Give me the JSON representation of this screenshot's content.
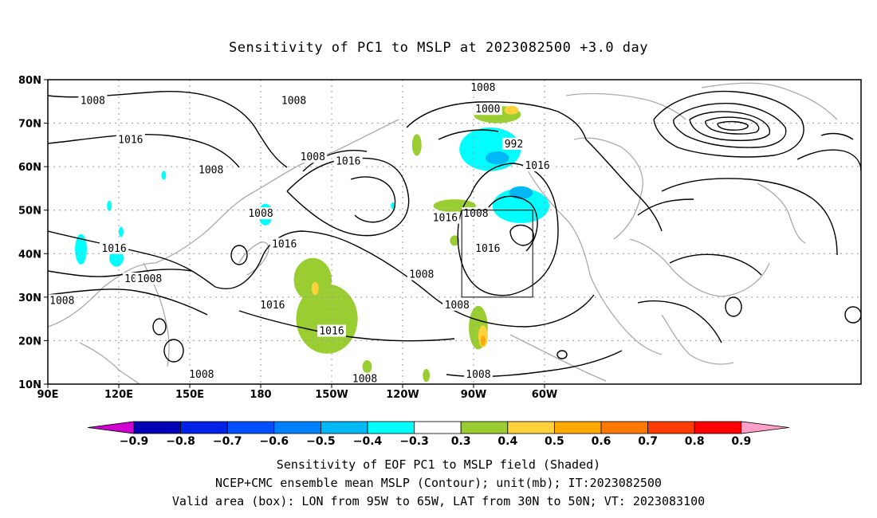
{
  "title": "Sensitivity of PC1 to MSLP at 2023082500 +3.0 day",
  "lat_labels": [
    "80N",
    "70N",
    "60N",
    "50N",
    "40N",
    "30N",
    "20N",
    "10N"
  ],
  "lon_labels": [
    "90E",
    "120E",
    "150E",
    "180",
    "150W",
    "120W",
    "90W",
    "60W"
  ],
  "contour_labels": [
    {
      "text": "1008",
      "lon": 109,
      "lat": 75
    },
    {
      "text": "1016",
      "lon": 125,
      "lat": 66
    },
    {
      "text": "1008",
      "lon": 159,
      "lat": 59
    },
    {
      "text": "1008",
      "lon": -166,
      "lat": 75
    },
    {
      "text": "1008",
      "lon": -158,
      "lat": 62
    },
    {
      "text": "1016",
      "lon": -143,
      "lat": 61
    },
    {
      "text": "1008",
      "lon": -86,
      "lat": 78
    },
    {
      "text": "1000",
      "lon": -84,
      "lat": 73
    },
    {
      "text": "992",
      "lon": -73,
      "lat": 65
    },
    {
      "text": "1008",
      "lon": -180,
      "lat": 49
    },
    {
      "text": "1016",
      "lon": -170,
      "lat": 42
    },
    {
      "text": "1016",
      "lon": 118,
      "lat": 41
    },
    {
      "text": "10",
      "lon": 125,
      "lat": 34
    },
    {
      "text": "1008",
      "lon": 133,
      "lat": 34
    },
    {
      "text": "1008",
      "lon": 96,
      "lat": 29
    },
    {
      "text": "1016",
      "lon": -175,
      "lat": 28
    },
    {
      "text": "1016",
      "lon": -150,
      "lat": 22
    },
    {
      "text": "1008",
      "lon": 155,
      "lat": 12
    },
    {
      "text": "1008",
      "lon": -136,
      "lat": 11
    },
    {
      "text": "1008",
      "lon": -112,
      "lat": 35
    },
    {
      "text": "1016",
      "lon": -102,
      "lat": 48
    },
    {
      "text": "1008",
      "lon": -89,
      "lat": 49
    },
    {
      "text": "1016",
      "lon": -84,
      "lat": 41
    },
    {
      "text": "1008",
      "lon": -97,
      "lat": 28
    },
    {
      "text": "1008",
      "lon": -88,
      "lat": 12
    },
    {
      "text": "1016",
      "lon": -63,
      "lat": 60
    }
  ],
  "valid_box": {
    "lon_min": -95,
    "lon_max": -65,
    "lat_min": 30,
    "lat_max": 50
  },
  "shaded_regions": [
    {
      "level": "0.3",
      "lon": -152,
      "lat": 25,
      "rx": 13,
      "ry": 8
    },
    {
      "level": "0.3",
      "lon": -158,
      "lat": 34,
      "rx": 8,
      "ry": 5
    },
    {
      "level": "0.3",
      "lon": -80,
      "lat": 72,
      "rx": 10,
      "ry": 2
    },
    {
      "level": "0.3",
      "lon": -98,
      "lat": 51,
      "rx": 9,
      "ry": 1.5
    },
    {
      "level": "0.3",
      "lon": -88,
      "lat": 23,
      "rx": 4,
      "ry": 5
    },
    {
      "level": "0.3",
      "lon": -114,
      "lat": 65,
      "rx": 2,
      "ry": 2.5
    },
    {
      "level": "0.3",
      "lon": -135,
      "lat": 14,
      "rx": 2,
      "ry": 1.5
    },
    {
      "level": "0.3",
      "lon": -110,
      "lat": 12,
      "rx": 1.5,
      "ry": 1.5
    },
    {
      "level": "0.3",
      "lon": -98,
      "lat": 43,
      "rx": 2,
      "ry": 1.2
    },
    {
      "level": "0.4",
      "lon": -86,
      "lat": 21,
      "rx": 2,
      "ry": 2.5
    },
    {
      "level": "0.4",
      "lon": -157,
      "lat": 32,
      "rx": 1.5,
      "ry": 1.5
    },
    {
      "level": "0.4",
      "lon": -74,
      "lat": 73,
      "rx": 3,
      "ry": 1
    },
    {
      "level": "0.5",
      "lon": -86,
      "lat": 20,
      "rx": 1,
      "ry": 1.2
    },
    {
      "level": "-0.3",
      "lon": -83,
      "lat": 64,
      "rx": 13,
      "ry": 5
    },
    {
      "level": "-0.3",
      "lon": -70,
      "lat": 51,
      "rx": 12,
      "ry": 4
    },
    {
      "level": "-0.3",
      "lon": -178,
      "lat": 49,
      "rx": 3,
      "ry": 2.5
    },
    {
      "level": "-0.3",
      "lon": 104,
      "lat": 41,
      "rx": 2.5,
      "ry": 3.5
    },
    {
      "level": "-0.3",
      "lon": 119,
      "lat": 39,
      "rx": 3,
      "ry": 2
    },
    {
      "level": "-0.3",
      "lon": 121,
      "lat": 45,
      "rx": 1,
      "ry": 1.2
    },
    {
      "level": "-0.3",
      "lon": 116,
      "lat": 51,
      "rx": 1,
      "ry": 1.2
    },
    {
      "level": "-0.3",
      "lon": 139,
      "lat": 58,
      "rx": 1,
      "ry": 1
    },
    {
      "level": "-0.3",
      "lon": -124,
      "lat": 51,
      "rx": 1,
      "ry": 0.8
    },
    {
      "level": "-0.4",
      "lon": -70,
      "lat": 54,
      "rx": 5,
      "ry": 1.5
    },
    {
      "level": "-0.4",
      "lon": -80,
      "lat": 62,
      "rx": 5,
      "ry": 1.5
    }
  ],
  "colorbar": {
    "ticks": [
      "−0.9",
      "−0.8",
      "−0.7",
      "−0.6",
      "−0.5",
      "−0.4",
      "−0.3",
      "0.3",
      "0.4",
      "0.5",
      "0.6",
      "0.7",
      "0.8",
      "0.9"
    ],
    "colors": [
      "#d000d0",
      "#0000b4",
      "#0022e6",
      "#0050ff",
      "#0080ff",
      "#00b8f5",
      "#00ffff",
      "#ffffff",
      "#9acd32",
      "#ffd23c",
      "#ffaa00",
      "#ff7800",
      "#ff3c00",
      "#ff0000",
      "#ffa0c8"
    ]
  },
  "footer": {
    "line1": "Sensitivity of EOF PC1 to MSLP field (Shaded)",
    "line2": "NCEP+CMC ensemble mean MSLP (Contour); unit(mb); IT:2023082500",
    "line3": "Valid area (box): LON from 95W to 65W, LAT from 30N to 50N; VT: 2023083100"
  }
}
